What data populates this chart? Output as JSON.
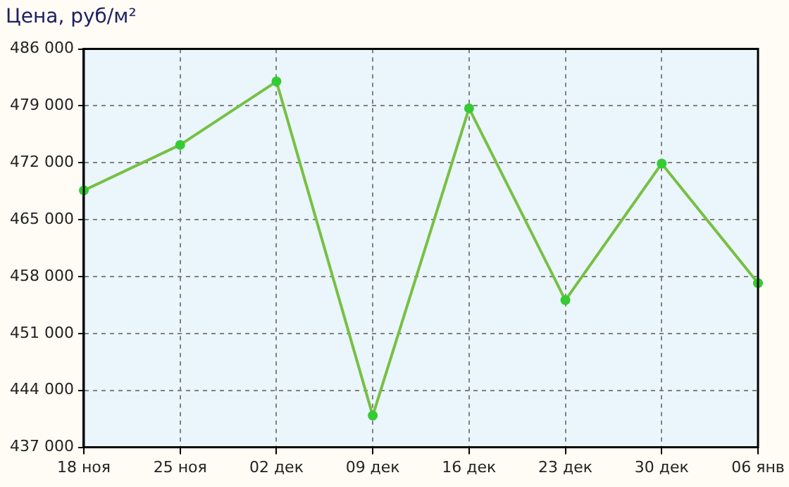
{
  "chart_data": {
    "type": "line",
    "title": "Цена, руб/м²",
    "categories": [
      "18 ноя",
      "25 ноя",
      "02 дек",
      "09 дек",
      "16 дек",
      "23 дек",
      "30 дек",
      "06 янв"
    ],
    "series": [
      {
        "color": "#77c043",
        "values": [
          468600,
          474200,
          482000,
          440900,
          478700,
          455100,
          471900,
          457200
        ]
      }
    ],
    "ylim": [
      437000,
      486000
    ],
    "yticks": [
      {
        "value": 437000,
        "label": "437 000"
      },
      {
        "value": 444000,
        "label": "444 000"
      },
      {
        "value": 451000,
        "label": "451 000"
      },
      {
        "value": 458000,
        "label": "458 000"
      },
      {
        "value": 465000,
        "label": "465 000"
      },
      {
        "value": 472000,
        "label": "472 000"
      },
      {
        "value": 479000,
        "label": "479 000"
      },
      {
        "value": 486000,
        "label": "486 000"
      }
    ],
    "grid": true,
    "legend": false,
    "marker": "circle",
    "line_style": "solid"
  }
}
